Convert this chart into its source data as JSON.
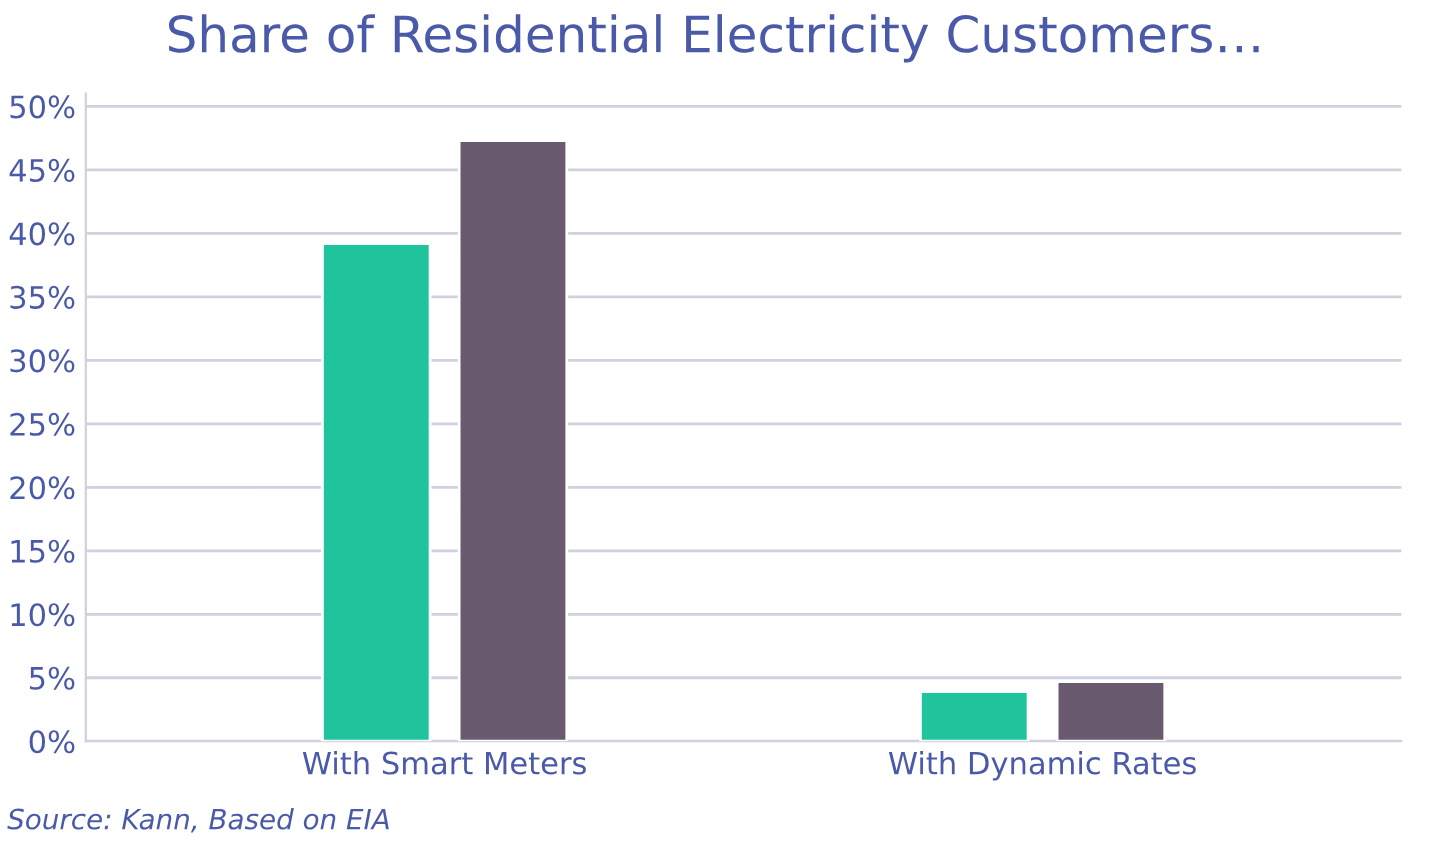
{
  "chart_data": {
    "type": "bar",
    "title": "Share of Residential Electricity Customers…",
    "categories": [
      "With Smart Meters",
      "With Dynamic Rates"
    ],
    "series": [
      {
        "color": "#1fc49d",
        "values": [
          39.2,
          3.9
        ]
      },
      {
        "color": "#695a70",
        "values": [
          47.3,
          4.7
        ]
      }
    ],
    "ylim": [
      0,
      51
    ],
    "yticks": [
      {
        "value": 0,
        "label": "0%"
      },
      {
        "value": 5,
        "label": "5%"
      },
      {
        "value": 10,
        "label": "10%"
      },
      {
        "value": 15,
        "label": "15%"
      },
      {
        "value": 20,
        "label": "20%"
      },
      {
        "value": 25,
        "label": "25%"
      },
      {
        "value": 30,
        "label": "30%"
      },
      {
        "value": 35,
        "label": "35%"
      },
      {
        "value": 40,
        "label": "40%"
      },
      {
        "value": 45,
        "label": "45%"
      },
      {
        "value": 50,
        "label": "50%"
      }
    ],
    "grid": "y",
    "annotations": [
      "Source: Kann, Based on EIA"
    ]
  }
}
